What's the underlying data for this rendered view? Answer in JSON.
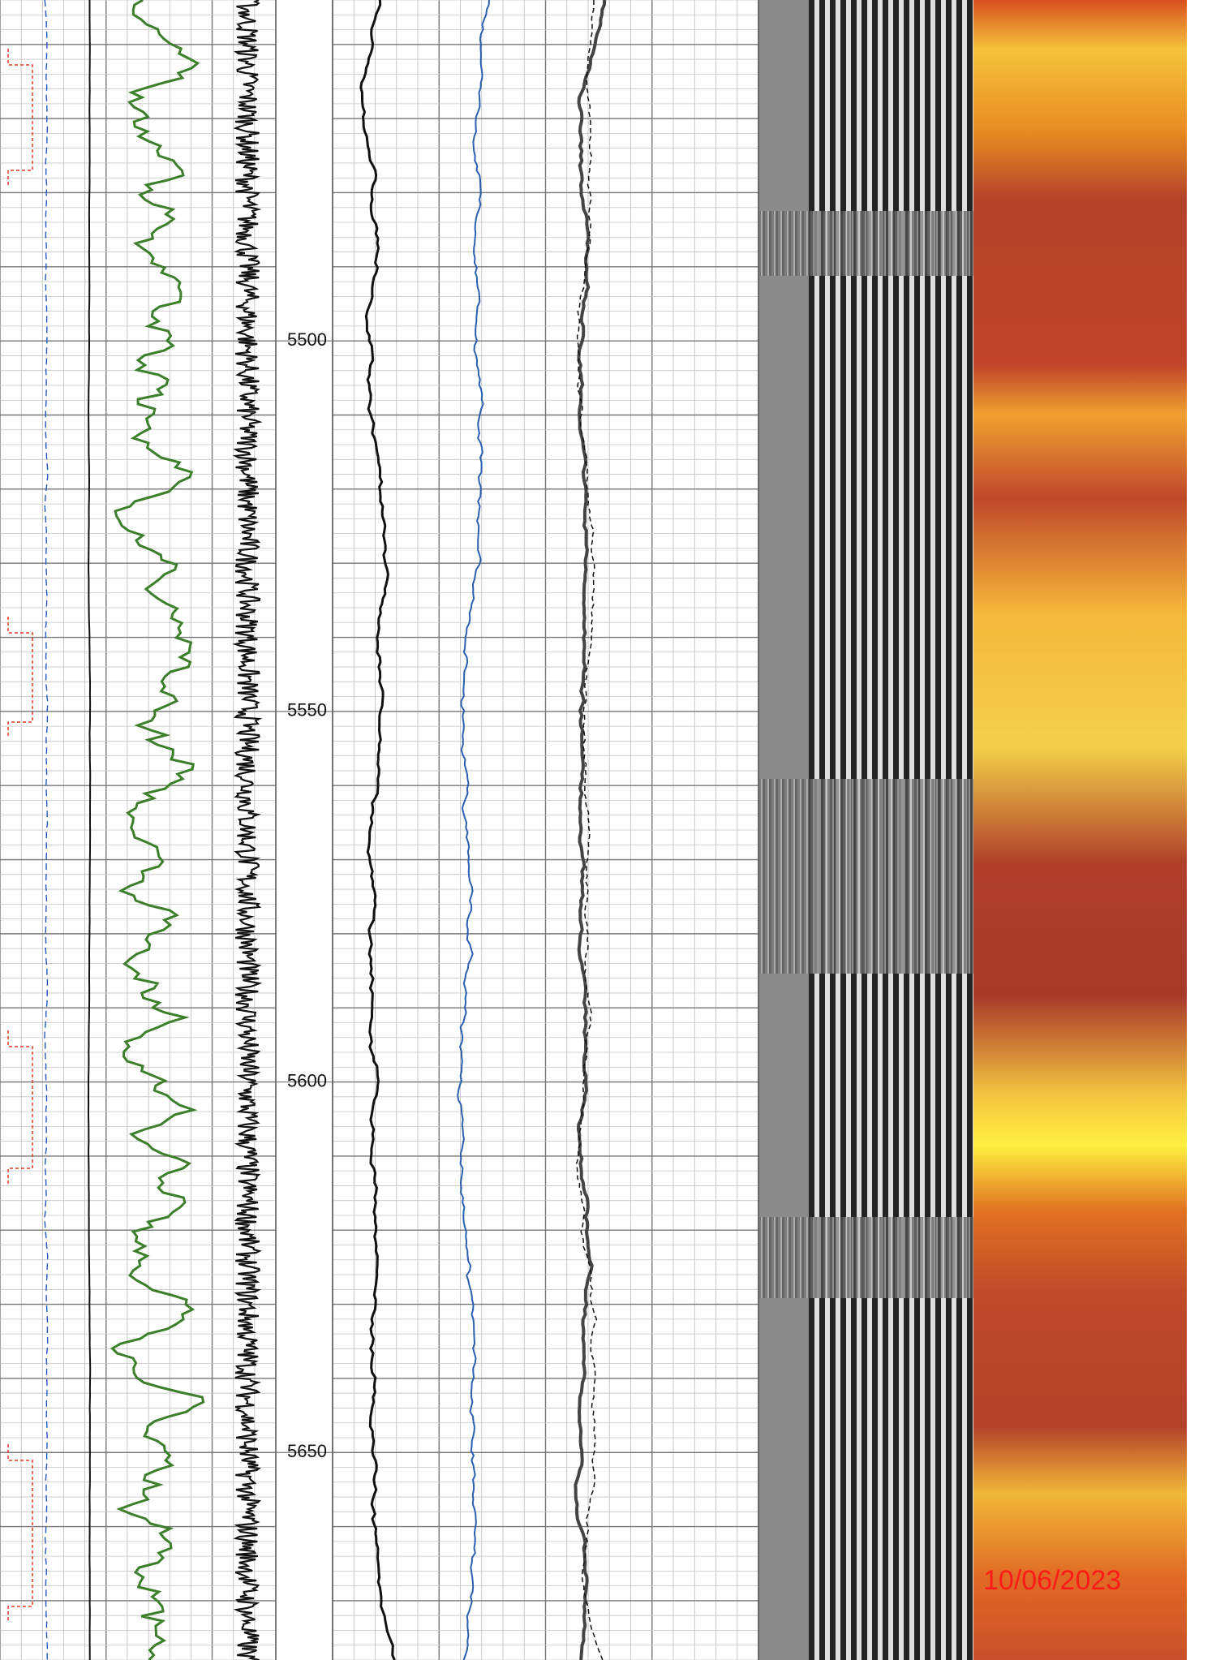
{
  "chart_data": {
    "type": "well-log",
    "ylim": [
      5454,
      5678
    ],
    "yticks": [
      5500,
      5550,
      5600,
      5650
    ],
    "date": "10/06/2023"
  }
}
